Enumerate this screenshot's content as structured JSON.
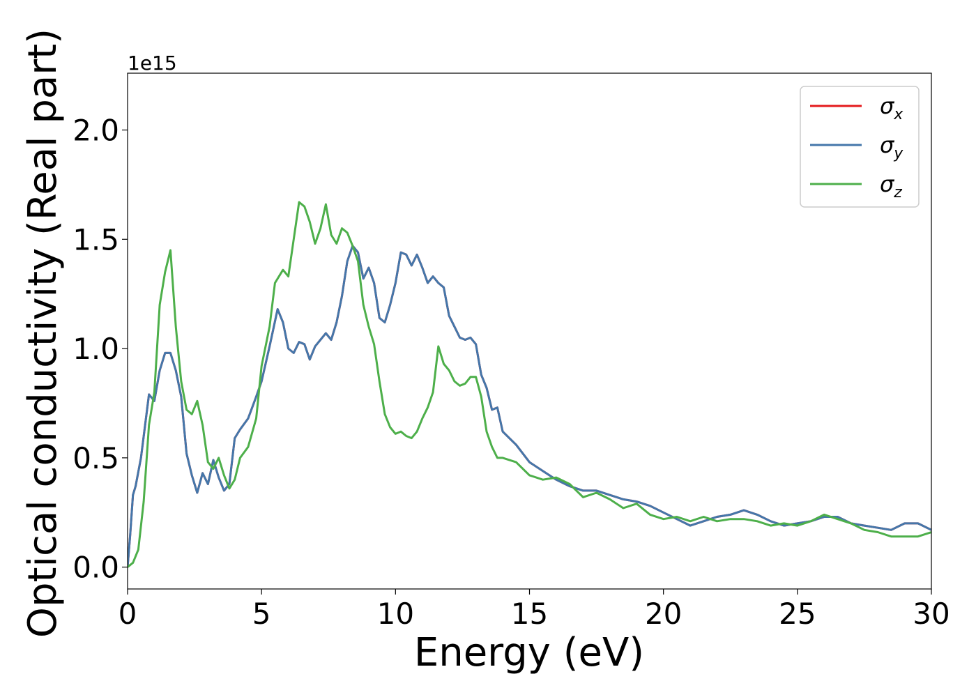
{
  "chart_data": {
    "type": "line",
    "title": "",
    "xlabel": "Energy (eV)",
    "ylabel": "Optical conductivity (Real part)",
    "y_offset_label": "1e15",
    "xlim": [
      0,
      30
    ],
    "ylim": [
      -0.1,
      2.26
    ],
    "xticks": [
      0,
      5,
      10,
      15,
      20,
      25,
      30
    ],
    "yticks": [
      0.0,
      0.5,
      1.0,
      1.5,
      2.0
    ],
    "xtick_labels": [
      "0",
      "5",
      "10",
      "15",
      "20",
      "25",
      "30"
    ],
    "ytick_labels": [
      "0.0",
      "0.5",
      "1.0",
      "1.5",
      "2.0"
    ],
    "grid": false,
    "legend_position": "top-right",
    "series": [
      {
        "name": "σx",
        "label_base": "σ",
        "label_sub": "x",
        "color": "#e41a1c",
        "x": [
          0,
          0.1,
          0.2,
          0.3,
          0.5,
          0.8,
          1.0,
          1.2,
          1.4,
          1.6,
          1.8,
          2.0,
          2.2,
          2.4,
          2.6,
          2.8,
          3.0,
          3.2,
          3.4,
          3.6,
          3.8,
          4.0,
          4.2,
          4.5,
          4.8,
          5.0,
          5.3,
          5.6,
          5.8,
          6.0,
          6.2,
          6.4,
          6.6,
          6.8,
          7.0,
          7.2,
          7.4,
          7.6,
          7.8,
          8.0,
          8.2,
          8.4,
          8.6,
          8.8,
          9.0,
          9.2,
          9.4,
          9.6,
          9.8,
          10.0,
          10.2,
          10.4,
          10.6,
          10.8,
          11.0,
          11.2,
          11.4,
          11.6,
          11.8,
          12.0,
          12.2,
          12.4,
          12.6,
          12.8,
          13.0,
          13.2,
          13.4,
          13.6,
          13.8,
          14.0,
          14.5,
          15.0,
          15.5,
          16.0,
          16.5,
          17.0,
          17.5,
          18.0,
          18.5,
          19.0,
          19.5,
          20.0,
          20.5,
          21.0,
          21.5,
          22.0,
          22.5,
          23.0,
          23.5,
          24.0,
          24.5,
          25.0,
          25.5,
          26.0,
          26.5,
          27.0,
          27.5,
          28.0,
          28.5,
          29.0,
          29.5,
          30.0
        ],
        "y": [
          0.0,
          0.15,
          0.33,
          0.37,
          0.5,
          0.79,
          0.76,
          0.9,
          0.98,
          0.98,
          0.9,
          0.78,
          0.52,
          0.42,
          0.34,
          0.43,
          0.38,
          0.49,
          0.41,
          0.35,
          0.38,
          0.59,
          0.63,
          0.68,
          0.78,
          0.85,
          1.01,
          1.18,
          1.12,
          1.0,
          0.98,
          1.03,
          1.02,
          0.95,
          1.01,
          1.04,
          1.07,
          1.04,
          1.12,
          1.24,
          1.4,
          1.47,
          1.44,
          1.32,
          1.37,
          1.3,
          1.14,
          1.12,
          1.2,
          1.3,
          1.44,
          1.43,
          1.38,
          1.43,
          1.37,
          1.3,
          1.33,
          1.3,
          1.28,
          1.15,
          1.1,
          1.05,
          1.04,
          1.05,
          1.02,
          0.88,
          0.82,
          0.72,
          0.73,
          0.62,
          0.56,
          0.48,
          0.44,
          0.4,
          0.37,
          0.35,
          0.35,
          0.33,
          0.31,
          0.3,
          0.28,
          0.25,
          0.22,
          0.19,
          0.21,
          0.23,
          0.24,
          0.26,
          0.24,
          0.21,
          0.19,
          0.2,
          0.21,
          0.23,
          0.23,
          0.2,
          0.19,
          0.18,
          0.17,
          0.2,
          0.2,
          0.17
        ]
      },
      {
        "name": "σy",
        "label_base": "σ",
        "label_sub": "y",
        "color": "#4477aa",
        "x": [
          0,
          0.1,
          0.2,
          0.3,
          0.5,
          0.8,
          1.0,
          1.2,
          1.4,
          1.6,
          1.8,
          2.0,
          2.2,
          2.4,
          2.6,
          2.8,
          3.0,
          3.2,
          3.4,
          3.6,
          3.8,
          4.0,
          4.2,
          4.5,
          4.8,
          5.0,
          5.3,
          5.6,
          5.8,
          6.0,
          6.2,
          6.4,
          6.6,
          6.8,
          7.0,
          7.2,
          7.4,
          7.6,
          7.8,
          8.0,
          8.2,
          8.4,
          8.6,
          8.8,
          9.0,
          9.2,
          9.4,
          9.6,
          9.8,
          10.0,
          10.2,
          10.4,
          10.6,
          10.8,
          11.0,
          11.2,
          11.4,
          11.6,
          11.8,
          12.0,
          12.2,
          12.4,
          12.6,
          12.8,
          13.0,
          13.2,
          13.4,
          13.6,
          13.8,
          14.0,
          14.5,
          15.0,
          15.5,
          16.0,
          16.5,
          17.0,
          17.5,
          18.0,
          18.5,
          19.0,
          19.5,
          20.0,
          20.5,
          21.0,
          21.5,
          22.0,
          22.5,
          23.0,
          23.5,
          24.0,
          24.5,
          25.0,
          25.5,
          26.0,
          26.5,
          27.0,
          27.5,
          28.0,
          28.5,
          29.0,
          29.5,
          30.0
        ],
        "y": [
          0.0,
          0.15,
          0.33,
          0.37,
          0.5,
          0.79,
          0.76,
          0.9,
          0.98,
          0.98,
          0.9,
          0.78,
          0.52,
          0.42,
          0.34,
          0.43,
          0.38,
          0.49,
          0.41,
          0.35,
          0.38,
          0.59,
          0.63,
          0.68,
          0.78,
          0.85,
          1.01,
          1.18,
          1.12,
          1.0,
          0.98,
          1.03,
          1.02,
          0.95,
          1.01,
          1.04,
          1.07,
          1.04,
          1.12,
          1.24,
          1.4,
          1.47,
          1.44,
          1.32,
          1.37,
          1.3,
          1.14,
          1.12,
          1.2,
          1.3,
          1.44,
          1.43,
          1.38,
          1.43,
          1.37,
          1.3,
          1.33,
          1.3,
          1.28,
          1.15,
          1.1,
          1.05,
          1.04,
          1.05,
          1.02,
          0.88,
          0.82,
          0.72,
          0.73,
          0.62,
          0.56,
          0.48,
          0.44,
          0.4,
          0.37,
          0.35,
          0.35,
          0.33,
          0.31,
          0.3,
          0.28,
          0.25,
          0.22,
          0.19,
          0.21,
          0.23,
          0.24,
          0.26,
          0.24,
          0.21,
          0.19,
          0.2,
          0.21,
          0.23,
          0.23,
          0.2,
          0.19,
          0.18,
          0.17,
          0.2,
          0.2,
          0.17
        ]
      },
      {
        "name": "σz",
        "label_base": "σ",
        "label_sub": "z",
        "color": "#4daf4a",
        "x": [
          0,
          0.2,
          0.4,
          0.6,
          0.8,
          1.0,
          1.2,
          1.4,
          1.6,
          1.8,
          2.0,
          2.2,
          2.4,
          2.6,
          2.8,
          3.0,
          3.2,
          3.4,
          3.6,
          3.8,
          4.0,
          4.2,
          4.5,
          4.8,
          5.0,
          5.3,
          5.5,
          5.8,
          6.0,
          6.2,
          6.4,
          6.6,
          6.8,
          7.0,
          7.2,
          7.4,
          7.6,
          7.8,
          8.0,
          8.2,
          8.4,
          8.6,
          8.8,
          9.0,
          9.2,
          9.4,
          9.6,
          9.8,
          10.0,
          10.2,
          10.4,
          10.6,
          10.8,
          11.0,
          11.2,
          11.4,
          11.6,
          11.8,
          12.0,
          12.2,
          12.4,
          12.6,
          12.8,
          13.0,
          13.2,
          13.4,
          13.6,
          13.8,
          14.0,
          14.5,
          15.0,
          15.5,
          16.0,
          16.5,
          17.0,
          17.5,
          18.0,
          18.5,
          19.0,
          19.5,
          20.0,
          20.5,
          21.0,
          21.5,
          22.0,
          22.5,
          23.0,
          23.5,
          24.0,
          24.5,
          25.0,
          25.5,
          26.0,
          26.5,
          27.0,
          27.5,
          28.0,
          28.5,
          29.0,
          29.5,
          30.0
        ],
        "y": [
          0.0,
          0.02,
          0.08,
          0.3,
          0.65,
          0.8,
          1.2,
          1.35,
          1.45,
          1.1,
          0.85,
          0.72,
          0.7,
          0.76,
          0.65,
          0.48,
          0.45,
          0.5,
          0.42,
          0.36,
          0.4,
          0.5,
          0.55,
          0.68,
          0.92,
          1.1,
          1.3,
          1.36,
          1.33,
          1.5,
          1.67,
          1.65,
          1.58,
          1.48,
          1.55,
          1.66,
          1.52,
          1.48,
          1.55,
          1.53,
          1.47,
          1.4,
          1.2,
          1.1,
          1.02,
          0.85,
          0.7,
          0.64,
          0.61,
          0.62,
          0.6,
          0.59,
          0.62,
          0.68,
          0.73,
          0.8,
          1.01,
          0.93,
          0.9,
          0.85,
          0.83,
          0.84,
          0.87,
          0.87,
          0.78,
          0.62,
          0.55,
          0.5,
          0.5,
          0.48,
          0.42,
          0.4,
          0.41,
          0.38,
          0.32,
          0.34,
          0.31,
          0.27,
          0.29,
          0.24,
          0.22,
          0.23,
          0.21,
          0.23,
          0.21,
          0.22,
          0.22,
          0.21,
          0.19,
          0.2,
          0.19,
          0.21,
          0.24,
          0.22,
          0.2,
          0.17,
          0.16,
          0.14,
          0.14,
          0.14,
          0.16
        ]
      }
    ]
  }
}
